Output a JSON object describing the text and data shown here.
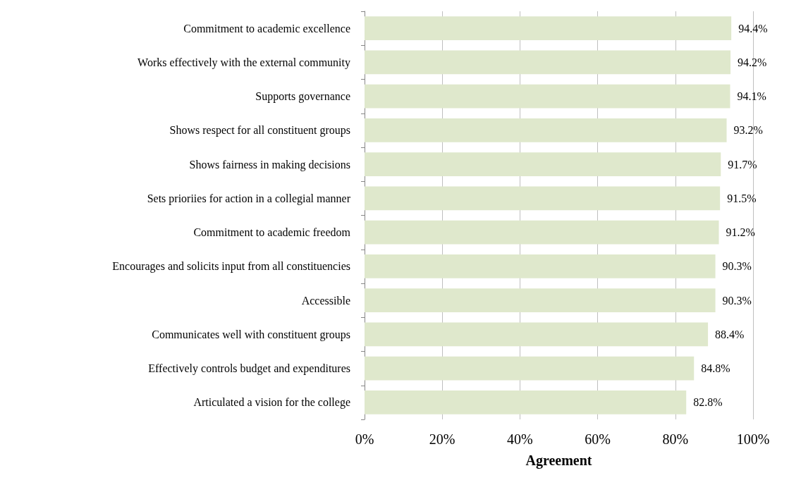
{
  "chart_data": {
    "type": "bar",
    "orientation": "horizontal",
    "xlabel": "Agreement",
    "categories": [
      "Commitment to academic excellence",
      "Works effectively with the external community",
      "Supports governance",
      "Shows respect for all constituent groups",
      "Shows fairness in making decisions",
      "Sets prioriies for action in a collegial manner",
      "Commitment to academic freedom",
      "Encourages and solicits input from all constituencies",
      "Accessible",
      "Communicates well with constituent groups",
      "Effectively controls budget and expenditures",
      "Articulated a vision for the college"
    ],
    "values": [
      94.4,
      94.2,
      94.1,
      93.2,
      91.7,
      91.5,
      91.2,
      90.3,
      90.3,
      88.4,
      84.8,
      82.8
    ],
    "value_labels": [
      "94.4%",
      "94.2%",
      "94.1%",
      "93.2%",
      "91.7%",
      "91.5%",
      "91.2%",
      "90.3%",
      "90.3%",
      "88.4%",
      "84.8%",
      "82.8%"
    ],
    "color": "#dfe8cc",
    "xlim": [
      0,
      100
    ],
    "xticks": [
      {
        "value": 0,
        "label": "0%"
      },
      {
        "value": 20,
        "label": "20%"
      },
      {
        "value": 40,
        "label": "40%"
      },
      {
        "value": 60,
        "label": "60%"
      },
      {
        "value": 80,
        "label": "80%"
      },
      {
        "value": 100,
        "label": "100%"
      }
    ],
    "grid": "x"
  }
}
